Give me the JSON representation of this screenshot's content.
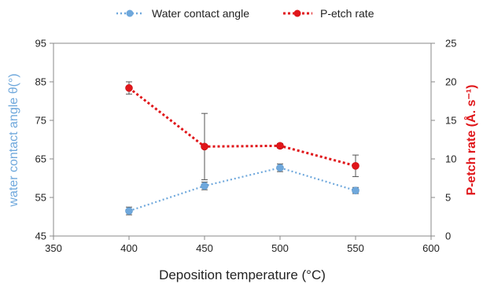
{
  "chart_data": {
    "type": "line",
    "xlabel": "Deposition temperature (°C)",
    "xlim": [
      350,
      600
    ],
    "x_ticks": [
      350,
      400,
      450,
      500,
      550,
      600
    ],
    "legend_position": "top",
    "grid": false,
    "axes": {
      "left": {
        "label": "water contact angle θ(°)",
        "ylim": [
          45,
          95
        ],
        "ticks": [
          45,
          55,
          65,
          75,
          85,
          95
        ],
        "color": "#6fa8dc"
      },
      "right": {
        "label": "P-etch rate (Å. s⁻¹)",
        "ylim": [
          0,
          25
        ],
        "ticks": [
          0,
          5,
          10,
          15,
          20,
          25
        ],
        "color": "#e0161a"
      }
    },
    "series": [
      {
        "name": "Water contact angle",
        "axis": "left",
        "color": "#6fa8dc",
        "line_style": "dotted",
        "x": [
          400,
          450,
          500,
          550
        ],
        "y": [
          51.5,
          58.0,
          62.7,
          56.8
        ],
        "error": [
          1.0,
          1.0,
          1.0,
          0.8
        ]
      },
      {
        "name": "P-etch rate",
        "axis": "right",
        "color": "#e0161a",
        "line_style": "dotted",
        "x": [
          400,
          450,
          500,
          550
        ],
        "y": [
          19.2,
          11.6,
          11.7,
          9.1
        ],
        "error": [
          0.8,
          4.3,
          0.3,
          1.4
        ]
      }
    ]
  }
}
